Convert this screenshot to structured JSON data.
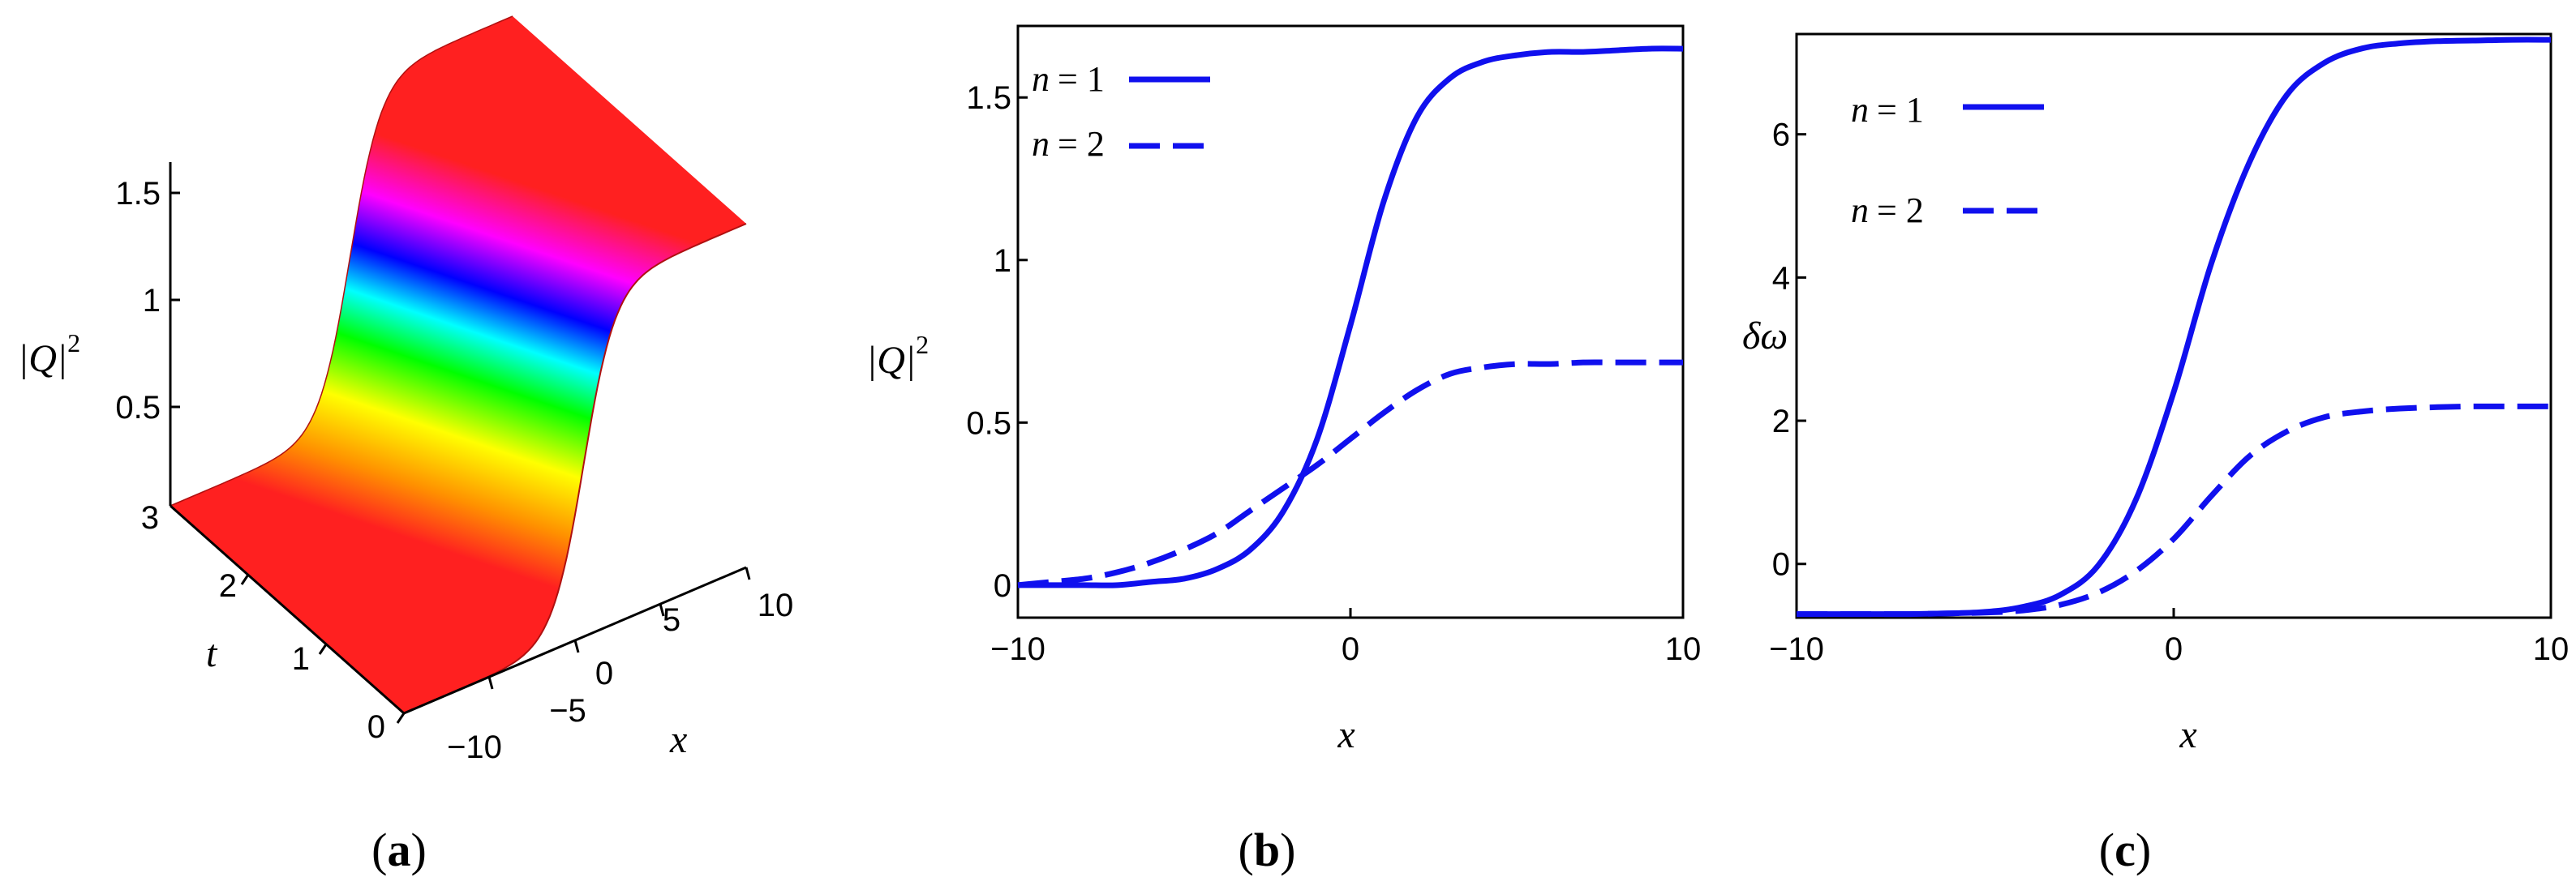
{
  "panels": [
    {
      "open": "(",
      "letter": "a",
      "close": ")"
    },
    {
      "open": "(",
      "letter": "b",
      "close": ")"
    },
    {
      "open": "(",
      "letter": "c",
      "close": ")"
    }
  ],
  "chart_data": [
    {
      "type": "surface",
      "zlabel": "|Q|",
      "zlabel_exponent": "2",
      "xlabel": "x",
      "ylabel": "t",
      "x_ticks": [
        "−10",
        "−5",
        "0",
        "5",
        "10"
      ],
      "t_ticks": [
        "0",
        "1",
        "2",
        "3"
      ],
      "z_ticks": [
        "0.5",
        "1",
        "1.5"
      ],
      "xlim": [
        -10,
        10
      ],
      "tlim": [
        0,
        3
      ],
      "zlim": [
        0,
        1.65
      ],
      "profile": {
        "low": 0,
        "high": 1.65,
        "center": 0.5,
        "width": 2.0
      },
      "colormap": [
        "#ff2020",
        "#ff9000",
        "#ffff00",
        "#00ff00",
        "#00ffff",
        "#0000ff",
        "#ff00ff",
        "#ff2020"
      ]
    },
    {
      "type": "line",
      "xlabel": "x",
      "ylabel": "|Q|",
      "ylabel_exponent": "2",
      "xlim": [
        -10,
        10
      ],
      "ylim": [
        -0.1,
        1.72
      ],
      "x_ticks": [
        -10,
        0,
        10
      ],
      "x_tick_labels": [
        "−10",
        "0",
        "10"
      ],
      "y_ticks": [
        0,
        0.5,
        1,
        1.5
      ],
      "y_tick_labels": [
        "0",
        "0.5",
        "1",
        "1.5"
      ],
      "legend_position": "top-left",
      "series": [
        {
          "name": "n = 1",
          "legend_var": "n",
          "legend_eq": "= 1",
          "dash": "solid",
          "color": "#1010ee",
          "x": [
            -10,
            -9,
            -8,
            -7,
            -6,
            -5,
            -4,
            -3,
            -2,
            -1,
            0,
            1,
            2,
            3,
            4,
            5,
            6,
            7,
            8,
            9,
            10
          ],
          "y": [
            0.0,
            0.0,
            0.0,
            0.0,
            0.01,
            0.02,
            0.05,
            0.11,
            0.23,
            0.45,
            0.8,
            1.18,
            1.44,
            1.56,
            1.61,
            1.63,
            1.64,
            1.64,
            1.645,
            1.65,
            1.65
          ]
        },
        {
          "name": "n = 2",
          "legend_var": "n",
          "legend_eq": "= 2",
          "dash": "dashed",
          "color": "#1010ee",
          "x": [
            -10,
            -9,
            -8,
            -7,
            -6,
            -5,
            -4,
            -3,
            -2,
            -1,
            0,
            1,
            2,
            3,
            4,
            5,
            6,
            7,
            8,
            9,
            10
          ],
          "y": [
            0.0,
            0.01,
            0.02,
            0.04,
            0.07,
            0.11,
            0.16,
            0.23,
            0.3,
            0.37,
            0.45,
            0.53,
            0.6,
            0.65,
            0.67,
            0.68,
            0.68,
            0.685,
            0.685,
            0.685,
            0.685
          ]
        }
      ]
    },
    {
      "type": "line",
      "xlabel": "x",
      "ylabel": "δω",
      "xlim": [
        -10,
        10
      ],
      "ylim": [
        -0.75,
        7.4
      ],
      "x_ticks": [
        -10,
        0,
        10
      ],
      "x_tick_labels": [
        "−10",
        "0",
        "10"
      ],
      "y_ticks": [
        0,
        2,
        4,
        6
      ],
      "y_tick_labels": [
        "0",
        "2",
        "4",
        "6"
      ],
      "legend_position": "top-left",
      "series": [
        {
          "name": "n = 1",
          "legend_var": "n",
          "legend_eq": "= 1",
          "dash": "solid",
          "color": "#1010ee",
          "x": [
            -10,
            -9,
            -8,
            -7,
            -6,
            -5,
            -4,
            -3,
            -2,
            -1,
            0,
            1,
            2,
            3,
            4,
            5,
            6,
            7,
            8,
            9,
            10
          ],
          "y": [
            -0.7,
            -0.7,
            -0.7,
            -0.7,
            -0.69,
            -0.67,
            -0.6,
            -0.43,
            -0.02,
            0.9,
            2.4,
            4.2,
            5.6,
            6.55,
            7.0,
            7.2,
            7.27,
            7.3,
            7.31,
            7.32,
            7.32
          ]
        },
        {
          "name": "n = 2",
          "legend_var": "n",
          "legend_eq": "= 2",
          "dash": "dashed",
          "color": "#1010ee",
          "x": [
            -10,
            -9,
            -8,
            -7,
            -6,
            -5,
            -4,
            -3,
            -2,
            -1,
            0,
            1,
            2,
            3,
            4,
            5,
            6,
            7,
            8,
            9,
            10
          ],
          "y": [
            -0.7,
            -0.7,
            -0.7,
            -0.7,
            -0.69,
            -0.68,
            -0.65,
            -0.57,
            -0.4,
            -0.1,
            0.35,
            0.95,
            1.5,
            1.85,
            2.05,
            2.13,
            2.17,
            2.19,
            2.2,
            2.2,
            2.2
          ]
        }
      ]
    }
  ]
}
